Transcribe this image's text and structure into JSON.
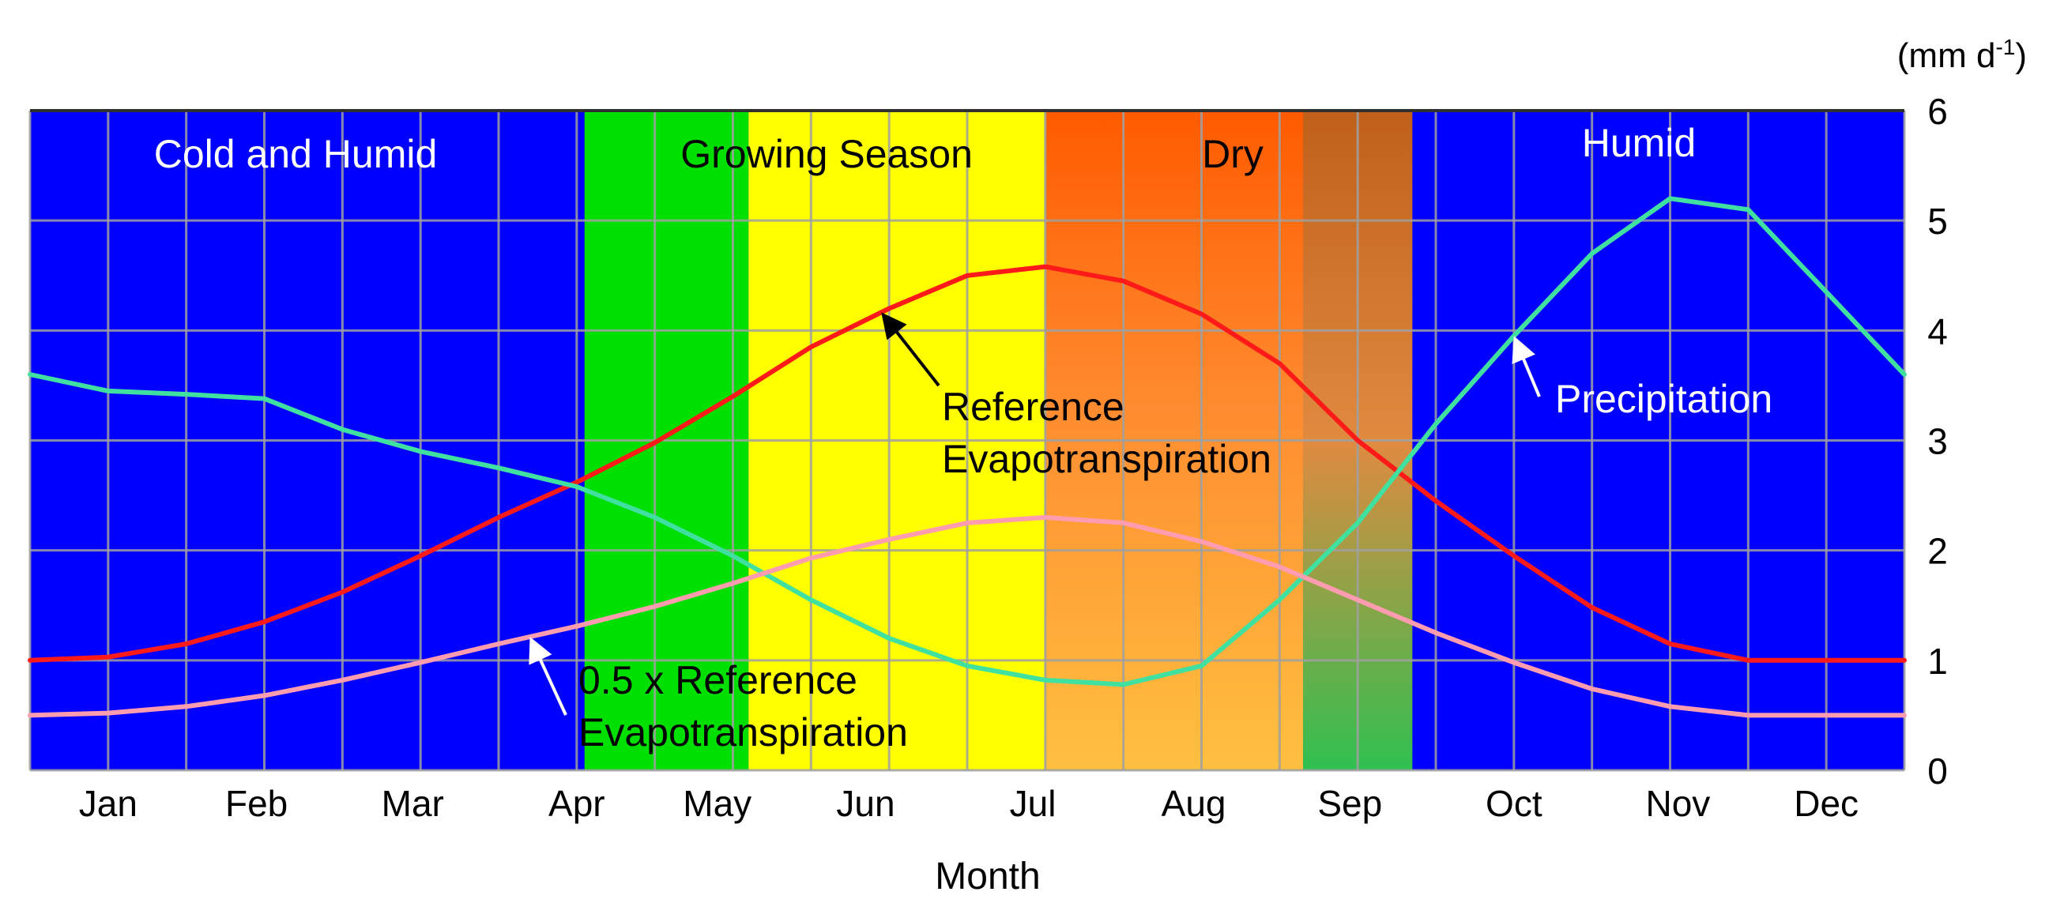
{
  "chart_data": {
    "type": "line",
    "xlabel": "Month",
    "unit_label_prefix": "(mm d",
    "unit_label_sup": "-1",
    "unit_label_suffix": ")",
    "ylim": [
      0,
      6
    ],
    "yticks": [
      "0",
      "1",
      "2",
      "3",
      "4",
      "5",
      "6"
    ],
    "categories": [
      "Jan",
      "Feb",
      "Mar",
      "Apr",
      "May",
      "Jun",
      "Jul",
      "Aug",
      "Sep",
      "Oct",
      "Nov",
      "Dec"
    ],
    "x_range": [
      0,
      12
    ],
    "seasons": [
      {
        "label": "Cold and Humid",
        "start": 0.0,
        "end": 3.55,
        "label_pos": 1.7
      },
      {
        "label": "Growing Season",
        "start": 3.55,
        "end": 6.5,
        "label_pos": 5.1
      },
      {
        "label": "Dry",
        "start": 6.5,
        "end": 8.85,
        "label_pos": 7.7
      },
      {
        "label": "Humid",
        "start": 8.85,
        "end": 12.0,
        "label_pos": 10.3
      }
    ],
    "series": [
      {
        "name": "Reference Evapotranspiration",
        "color": "#ff1a1a",
        "x": [
          0,
          0.5,
          1,
          1.5,
          2,
          2.5,
          3,
          3.5,
          4,
          4.5,
          5,
          5.5,
          6,
          6.5,
          7,
          7.5,
          8,
          8.5,
          9,
          9.5,
          10,
          10.5,
          11,
          11.5,
          12
        ],
        "values": [
          1.0,
          1.03,
          1.15,
          1.35,
          1.62,
          1.95,
          2.3,
          2.62,
          2.98,
          3.4,
          3.85,
          4.2,
          4.5,
          4.58,
          4.45,
          4.15,
          3.7,
          3.0,
          2.45,
          1.95,
          1.48,
          1.15,
          1.0,
          1.0,
          1.0
        ]
      },
      {
        "name": "0.5 x Reference Evapotranspiration",
        "color": "#ff9cb0",
        "x": [
          0,
          0.5,
          1,
          1.5,
          2,
          2.5,
          3,
          3.5,
          4,
          4.5,
          5,
          5.5,
          6,
          6.5,
          7,
          7.5,
          8,
          8.5,
          9,
          9.5,
          10,
          10.5,
          11,
          11.5,
          12
        ],
        "values": [
          0.5,
          0.52,
          0.58,
          0.68,
          0.82,
          0.98,
          1.15,
          1.31,
          1.49,
          1.7,
          1.93,
          2.1,
          2.25,
          2.3,
          2.25,
          2.08,
          1.85,
          1.55,
          1.25,
          0.98,
          0.74,
          0.58,
          0.5,
          0.5,
          0.5
        ]
      },
      {
        "name": "Precipitation",
        "color": "#40e0a0",
        "x": [
          0,
          0.5,
          1,
          1.5,
          2,
          2.5,
          3,
          3.5,
          4,
          4.5,
          5,
          5.5,
          6,
          6.5,
          7,
          7.5,
          8,
          8.5,
          9,
          9.5,
          10,
          10.5,
          11,
          11.5,
          12
        ],
        "values": [
          3.6,
          3.45,
          3.42,
          3.38,
          3.1,
          2.9,
          2.75,
          2.58,
          2.3,
          1.95,
          1.55,
          1.2,
          0.95,
          0.82,
          0.78,
          0.95,
          1.55,
          2.25,
          3.15,
          3.95,
          4.7,
          5.2,
          5.1,
          4.35,
          3.6
        ]
      }
    ],
    "annotations": [
      {
        "lines": [
          "Reference",
          "Evapotranspiration"
        ],
        "target_series": "Reference Evapotranspiration",
        "target_x": 5.45,
        "text_color": "#000000"
      },
      {
        "lines": [
          "0.5 x Reference",
          "Evapotranspiration"
        ],
        "target_series": "0.5 x Reference Evapotranspiration",
        "target_x": 3.2,
        "text_color": "#000000"
      },
      {
        "lines": [
          "Precipitation"
        ],
        "target_series": "Precipitation",
        "target_x": 9.5,
        "text_color": "#ffffff"
      }
    ]
  }
}
